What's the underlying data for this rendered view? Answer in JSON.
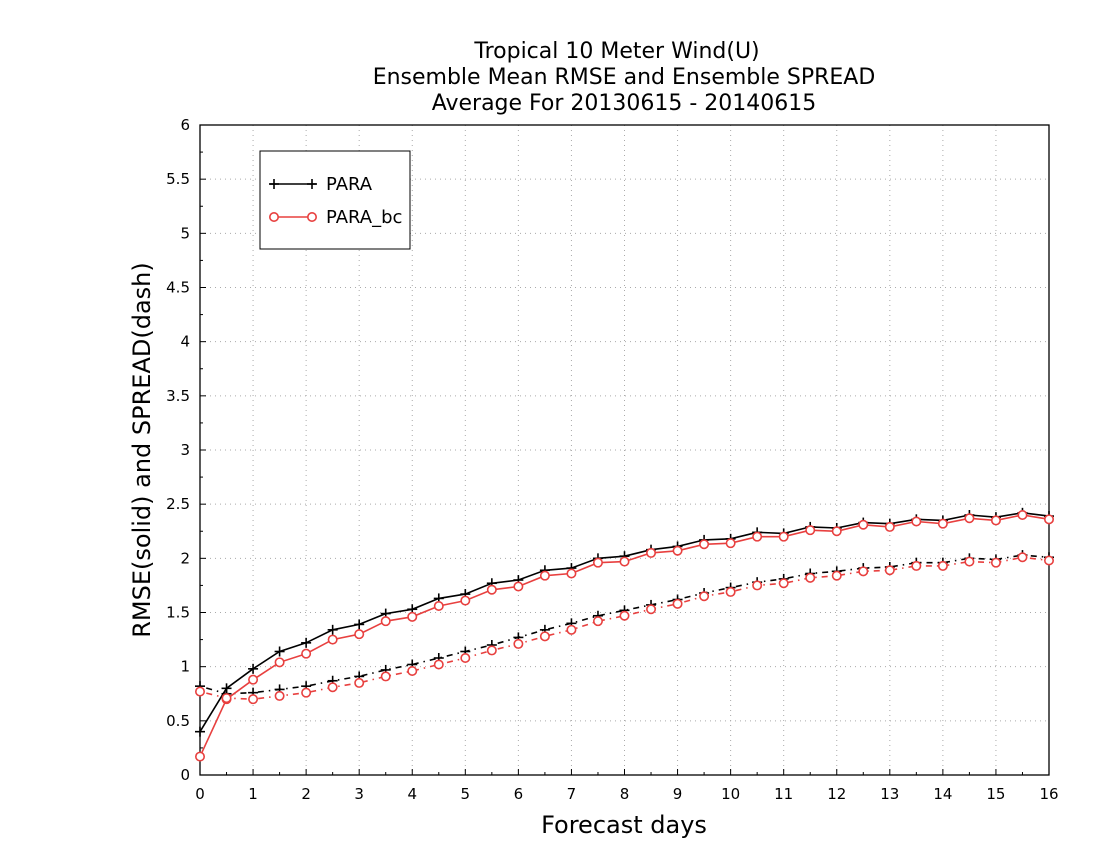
{
  "chart_data": {
    "type": "line",
    "title": [
      "Tropical 10 Meter Wind(U)",
      "Ensemble Mean RMSE and Ensemble SPREAD",
      "Average For 20130615 - 20140615"
    ],
    "xlabel": "Forecast days",
    "ylabel": "RMSE(solid) and SPREAD(dash)",
    "xlim": [
      0,
      16
    ],
    "ylim": [
      0,
      6
    ],
    "xticks": [
      0,
      1,
      2,
      3,
      4,
      5,
      6,
      7,
      8,
      9,
      10,
      11,
      12,
      13,
      14,
      15,
      16
    ],
    "yticks": [
      0,
      0.5,
      1,
      1.5,
      2,
      2.5,
      3,
      3.5,
      4,
      4.5,
      5,
      5.5,
      6
    ],
    "ytick_labels": [
      "0",
      "0.5",
      "1",
      "1.5",
      "2",
      "2.5",
      "3",
      "3.5",
      "4",
      "4.5",
      "5",
      "5.5",
      "6"
    ],
    "grid": true,
    "legend_position": "top-left",
    "x": [
      0,
      0.5,
      1,
      1.5,
      2,
      2.5,
      3,
      3.5,
      4,
      4.5,
      5,
      5.5,
      6,
      6.5,
      7,
      7.5,
      8,
      8.5,
      9,
      9.5,
      10,
      10.5,
      11,
      11.5,
      12,
      12.5,
      13,
      13.5,
      14,
      14.5,
      15,
      15.5,
      16
    ],
    "series": [
      {
        "name": "PARA",
        "metric": "RMSE",
        "style": "solid",
        "color": "#000000",
        "marker": "plus",
        "values": [
          0.4,
          0.8,
          0.98,
          1.14,
          1.22,
          1.34,
          1.39,
          1.49,
          1.53,
          1.63,
          1.67,
          1.77,
          1.8,
          1.89,
          1.91,
          2.0,
          2.02,
          2.08,
          2.11,
          2.17,
          2.18,
          2.24,
          2.23,
          2.29,
          2.28,
          2.33,
          2.32,
          2.36,
          2.35,
          2.4,
          2.38,
          2.42,
          2.39
        ]
      },
      {
        "name": "PARA",
        "metric": "SPREAD",
        "style": "dashed",
        "color": "#000000",
        "marker": "plus",
        "values": [
          0.82,
          0.75,
          0.76,
          0.79,
          0.82,
          0.87,
          0.91,
          0.97,
          1.02,
          1.08,
          1.14,
          1.2,
          1.27,
          1.34,
          1.4,
          1.47,
          1.52,
          1.57,
          1.62,
          1.68,
          1.73,
          1.78,
          1.81,
          1.86,
          1.88,
          1.91,
          1.92,
          1.96,
          1.96,
          2.0,
          1.99,
          2.03,
          2.01
        ]
      },
      {
        "name": "PARA_bc",
        "metric": "RMSE",
        "style": "solid",
        "color": "#e8403f",
        "marker": "circle",
        "values": [
          0.17,
          0.7,
          0.88,
          1.04,
          1.12,
          1.25,
          1.3,
          1.42,
          1.46,
          1.56,
          1.61,
          1.71,
          1.74,
          1.84,
          1.86,
          1.96,
          1.97,
          2.05,
          2.07,
          2.13,
          2.14,
          2.2,
          2.2,
          2.26,
          2.25,
          2.31,
          2.29,
          2.34,
          2.32,
          2.37,
          2.35,
          2.4,
          2.36
        ]
      },
      {
        "name": "PARA_bc",
        "metric": "SPREAD",
        "style": "dashed",
        "color": "#e8403f",
        "marker": "circle",
        "values": [
          0.77,
          0.71,
          0.7,
          0.73,
          0.76,
          0.81,
          0.85,
          0.91,
          0.96,
          1.02,
          1.08,
          1.15,
          1.21,
          1.28,
          1.34,
          1.42,
          1.47,
          1.53,
          1.58,
          1.65,
          1.69,
          1.75,
          1.77,
          1.82,
          1.84,
          1.88,
          1.89,
          1.93,
          1.93,
          1.97,
          1.96,
          2.01,
          1.98
        ]
      }
    ],
    "legend": [
      {
        "label": "PARA",
        "color": "#000000",
        "marker": "plus"
      },
      {
        "label": "PARA_bc",
        "color": "#e8403f",
        "marker": "circle"
      }
    ]
  }
}
